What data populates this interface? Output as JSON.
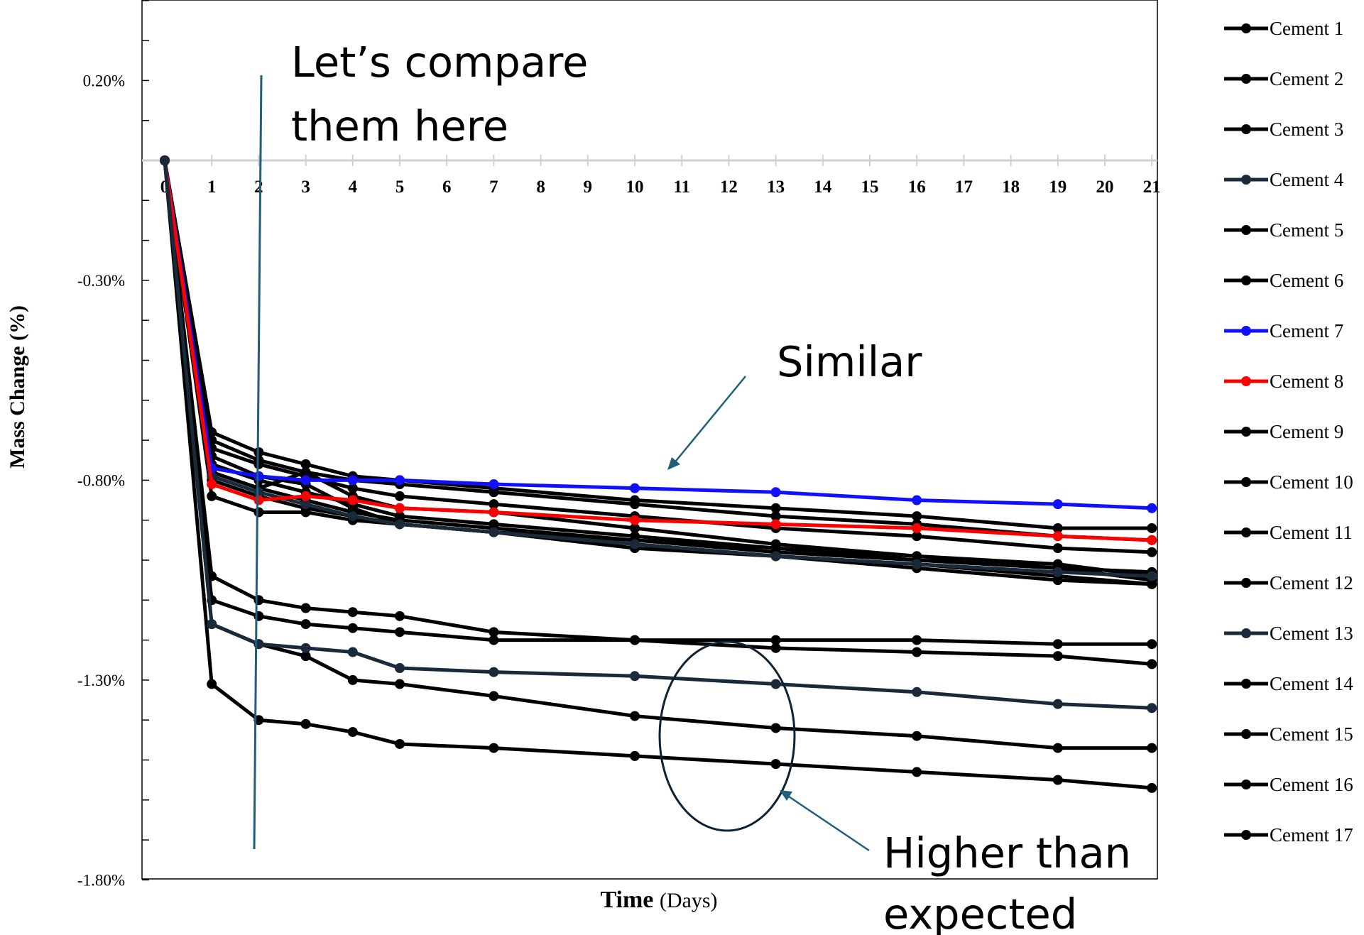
{
  "chart_data": {
    "type": "line",
    "title": "",
    "xlabel": "Time",
    "xlabel_unit": "(Days)",
    "ylabel": "Mass Change (%)",
    "x_ticks": [
      0,
      1,
      2,
      3,
      4,
      5,
      6,
      7,
      8,
      9,
      10,
      11,
      12,
      13,
      14,
      15,
      16,
      17,
      18,
      19,
      20,
      21
    ],
    "y_ticks": [
      0.2,
      -0.3,
      -0.8,
      -1.3,
      -1.8
    ],
    "y_tick_labels": [
      "0.20%",
      "-0.30%",
      "-0.80%",
      "-1.30%",
      "-1.80%"
    ],
    "ylim": [
      -1.8,
      0.4
    ],
    "x": [
      0,
      1,
      2,
      3,
      4,
      5,
      7,
      10,
      13,
      16,
      19,
      21
    ],
    "legend_position": "right",
    "series": [
      {
        "name": "Cement 1",
        "color": "#000000",
        "values": [
          0,
          -0.68,
          -0.73,
          -0.76,
          -0.79,
          -0.8,
          -0.82,
          -0.85,
          -0.87,
          -0.89,
          -0.92,
          -0.92
        ]
      },
      {
        "name": "Cement 2",
        "color": "#000000",
        "values": [
          0,
          -0.7,
          -0.75,
          -0.78,
          -0.8,
          -0.81,
          -0.83,
          -0.86,
          -0.89,
          -0.91,
          -0.94,
          -0.95
        ]
      },
      {
        "name": "Cement 3",
        "color": "#000000",
        "values": [
          0,
          -0.72,
          -0.76,
          -0.79,
          -0.82,
          -0.84,
          -0.86,
          -0.89,
          -0.92,
          -0.94,
          -0.97,
          -0.98
        ]
      },
      {
        "name": "Cement 4",
        "color": "#1a2a3a",
        "values": [
          0,
          -0.79,
          -0.83,
          -0.86,
          -0.89,
          -0.91,
          -0.93,
          -0.96,
          -0.99,
          -1.01,
          -1.03,
          -1.04
        ]
      },
      {
        "name": "Cement 5",
        "color": "#000000",
        "values": [
          0,
          -0.76,
          -0.8,
          -0.83,
          -0.86,
          -0.89,
          -0.91,
          -0.94,
          -0.97,
          -0.99,
          -1.02,
          -1.03
        ]
      },
      {
        "name": "Cement 6",
        "color": "#000000",
        "values": [
          0,
          -0.78,
          -0.82,
          -0.85,
          -0.88,
          -0.9,
          -0.92,
          -0.95,
          -0.98,
          -1.0,
          -1.02,
          -1.03
        ]
      },
      {
        "name": "Cement 7",
        "color": "#1010ff",
        "values": [
          0,
          -0.77,
          -0.79,
          -0.8,
          -0.8,
          -0.8,
          -0.81,
          -0.82,
          -0.83,
          -0.85,
          -0.86,
          -0.87
        ]
      },
      {
        "name": "Cement 8",
        "color": "#ff0000",
        "values": [
          0,
          -0.81,
          -0.85,
          -0.84,
          -0.85,
          -0.87,
          -0.88,
          -0.9,
          -0.91,
          -0.92,
          -0.94,
          -0.95
        ]
      },
      {
        "name": "Cement 9",
        "color": "#000000",
        "values": [
          0,
          -0.74,
          -0.79,
          -0.81,
          -0.87,
          -0.91,
          -0.93,
          -0.97,
          -0.99,
          -1.02,
          -1.05,
          -1.06
        ]
      },
      {
        "name": "Cement 10",
        "color": "#000000",
        "values": [
          0,
          -0.84,
          -0.88,
          -0.88,
          -0.9,
          -0.91,
          -0.93,
          -0.96,
          -0.99,
          -1.01,
          -1.04,
          -1.06
        ]
      },
      {
        "name": "Cement 11",
        "color": "#000000",
        "values": [
          0,
          -0.8,
          -0.84,
          -0.87,
          -0.89,
          -0.91,
          -0.93,
          -0.95,
          -0.97,
          -1.0,
          -1.02,
          -1.05
        ]
      },
      {
        "name": "Cement 12",
        "color": "#000000",
        "values": [
          0,
          -0.78,
          -0.82,
          -0.78,
          -0.84,
          -0.87,
          -0.88,
          -0.92,
          -0.96,
          -0.99,
          -1.01,
          -1.04
        ]
      },
      {
        "name": "Cement 13",
        "color": "#1a2a3a",
        "values": [
          0,
          -1.16,
          -1.21,
          -1.22,
          -1.23,
          -1.27,
          -1.28,
          -1.29,
          -1.31,
          -1.33,
          -1.36,
          -1.37
        ]
      },
      {
        "name": "Cement 14",
        "color": "#000000",
        "values": [
          0,
          -1.1,
          -1.14,
          -1.16,
          -1.17,
          -1.18,
          -1.2,
          -1.2,
          -1.2,
          -1.2,
          -1.21,
          -1.21
        ]
      },
      {
        "name": "Cement 15",
        "color": "#000000",
        "values": [
          0,
          -1.16,
          -1.21,
          -1.24,
          -1.3,
          -1.31,
          -1.34,
          -1.39,
          -1.42,
          -1.44,
          -1.47,
          -1.47
        ]
      },
      {
        "name": "Cement 16",
        "color": "#000000",
        "values": [
          0,
          -1.31,
          -1.4,
          -1.41,
          -1.43,
          -1.46,
          -1.47,
          -1.49,
          -1.51,
          -1.53,
          -1.55,
          -1.57
        ]
      },
      {
        "name": "Cement 17",
        "color": "#000000",
        "values": [
          0,
          -1.04,
          -1.1,
          -1.12,
          -1.13,
          -1.14,
          -1.18,
          -1.2,
          -1.22,
          -1.23,
          -1.24,
          -1.26
        ]
      }
    ],
    "annotations": [
      {
        "id": "compare",
        "text_lines": [
          "Let’s compare",
          "them here"
        ],
        "refers_to_day": 2
      },
      {
        "id": "similar",
        "text_lines": [
          "Similar"
        ]
      },
      {
        "id": "higher",
        "text_lines": [
          "Higher than",
          "expected"
        ]
      }
    ],
    "accent_colors": {
      "annotation_line": "#1f5f7a",
      "axis": "#000000",
      "zero_axis": "#d0d0d0"
    }
  }
}
